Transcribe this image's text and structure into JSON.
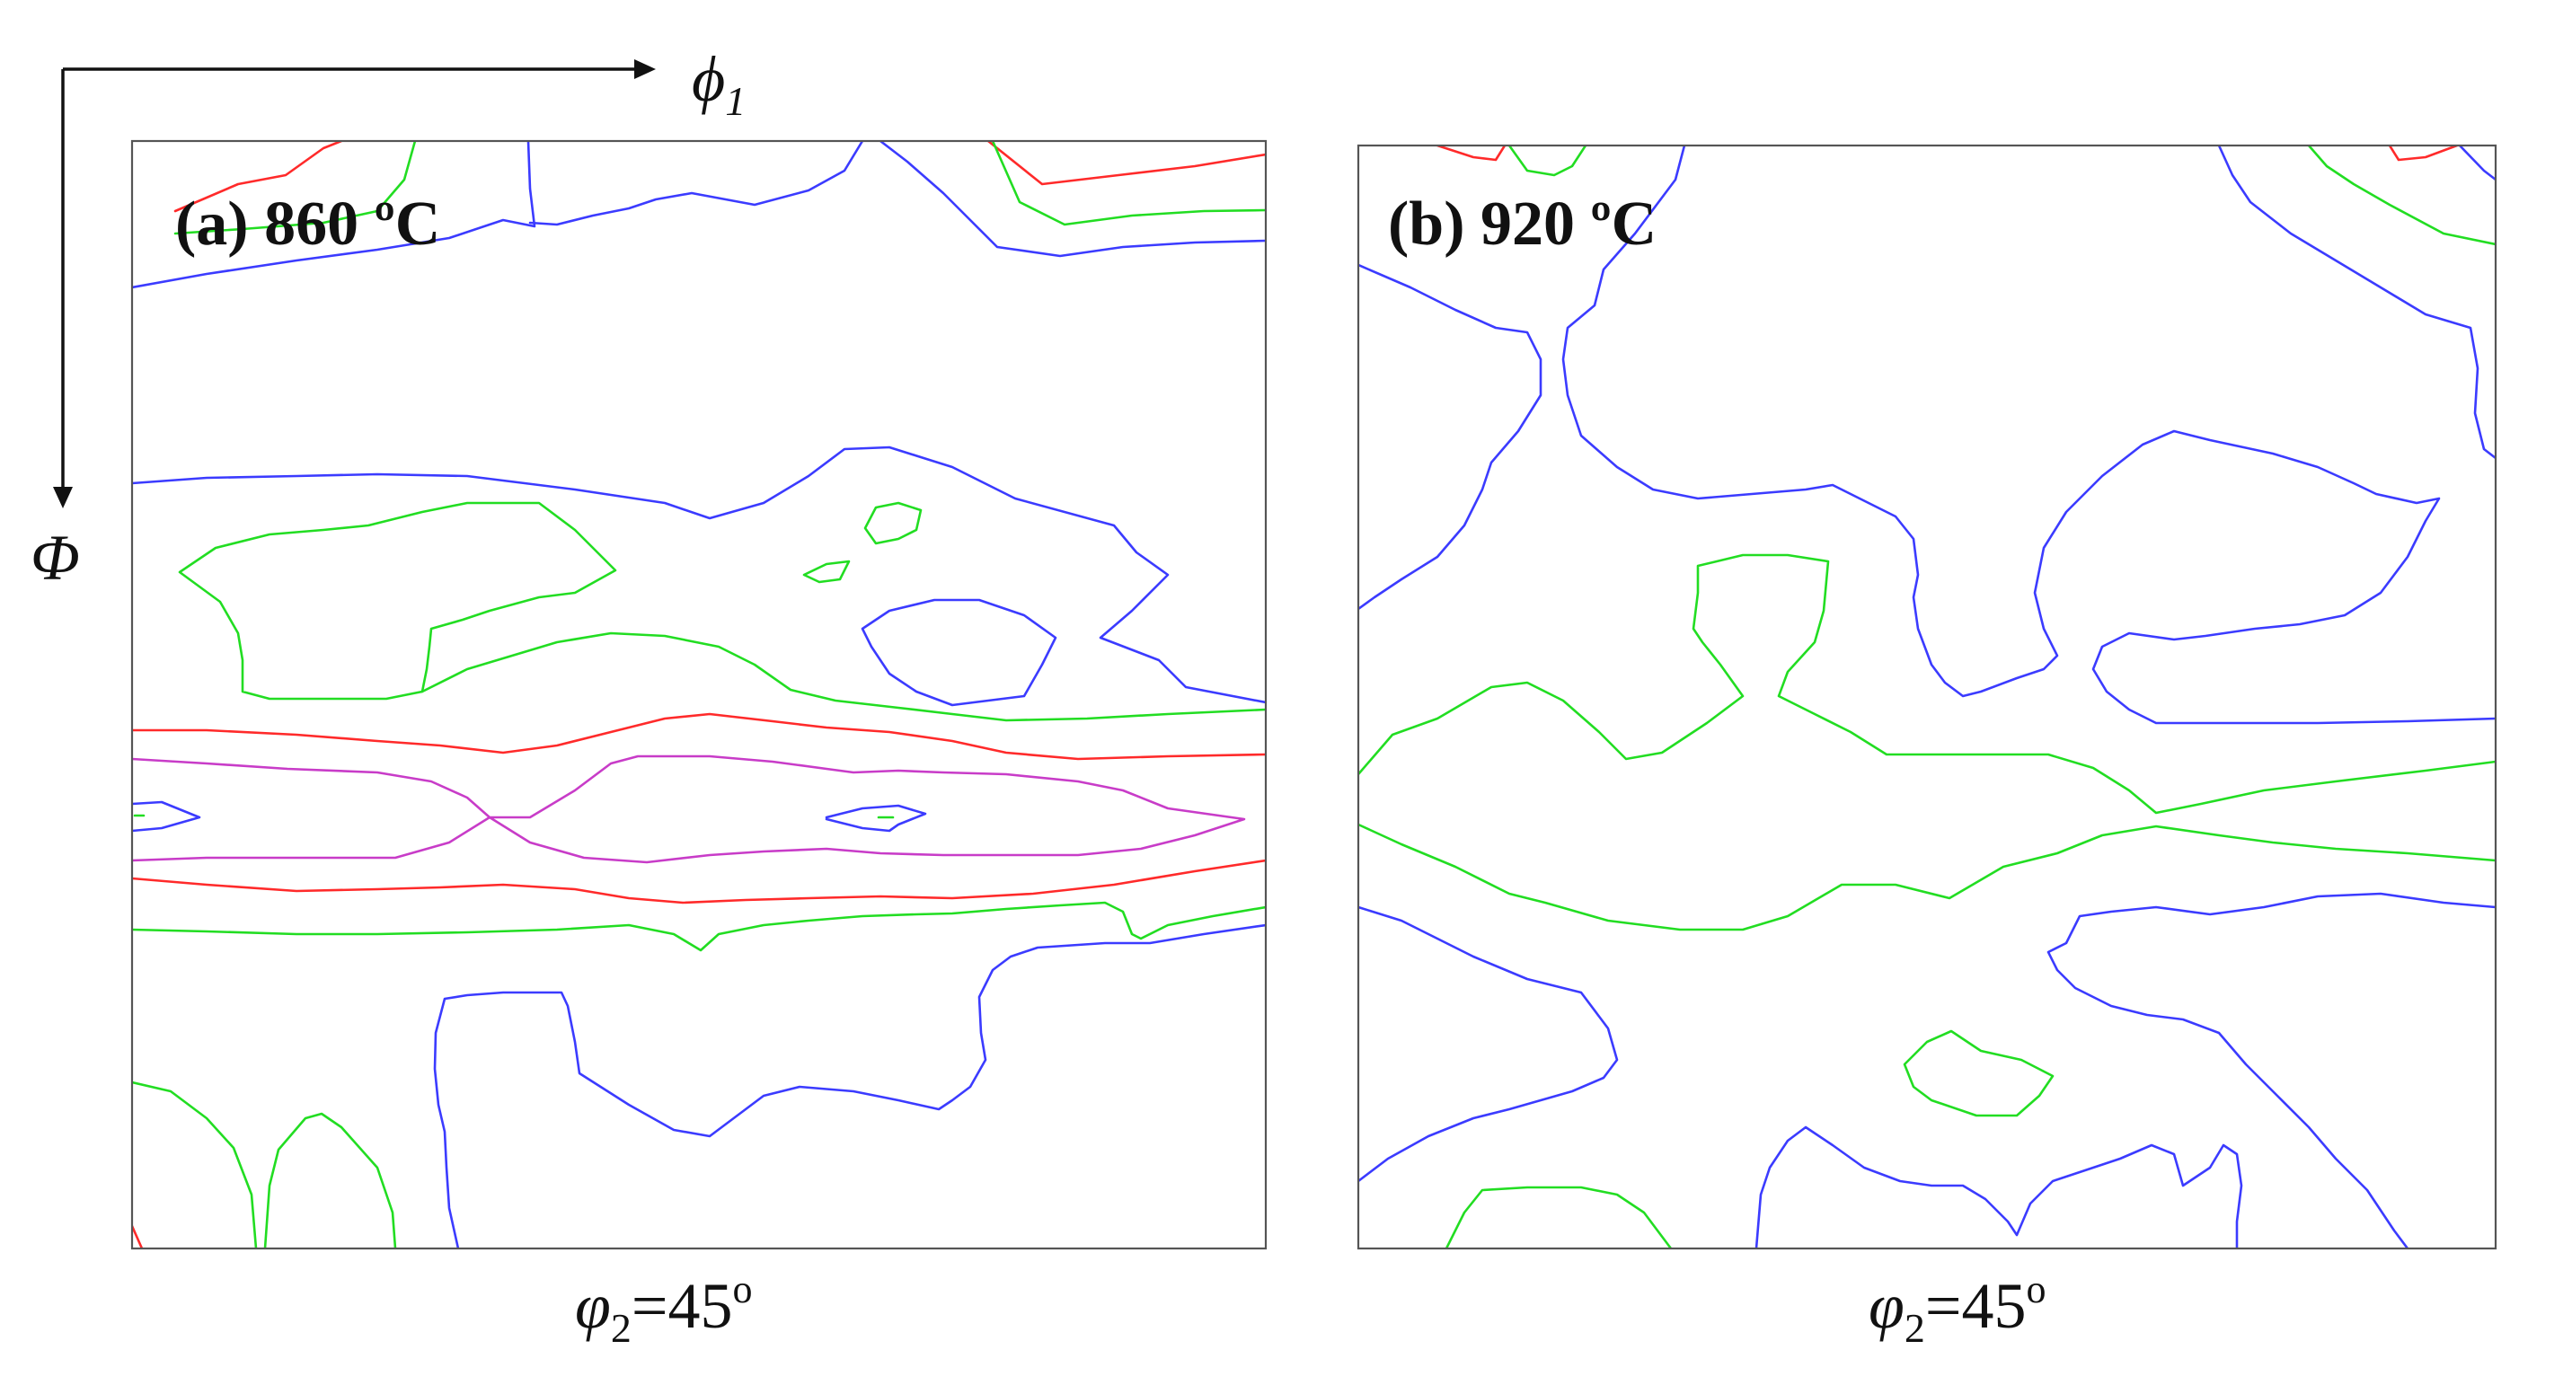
{
  "axes": {
    "horizontal": {
      "symbol": "ϕ",
      "subscript": "1"
    },
    "vertical": {
      "symbol": "Φ"
    }
  },
  "panels": [
    {
      "label": "(a) 860 ºC",
      "caption": {
        "symbol": "φ",
        "subscript": "2",
        "value": "=45",
        "unit": "o"
      }
    },
    {
      "label": "(b) 920 ºC",
      "caption": {
        "symbol": "φ",
        "subscript": "2",
        "value": "=45",
        "unit": "o"
      }
    }
  ],
  "colors": {
    "background": "#ffffff",
    "frame": "#555555",
    "text": "#111111",
    "contour_blue": "#3b3bff",
    "contour_green": "#22dd22",
    "contour_red": "#ff2a2a",
    "contour_magenta": "#c83cc8"
  }
}
